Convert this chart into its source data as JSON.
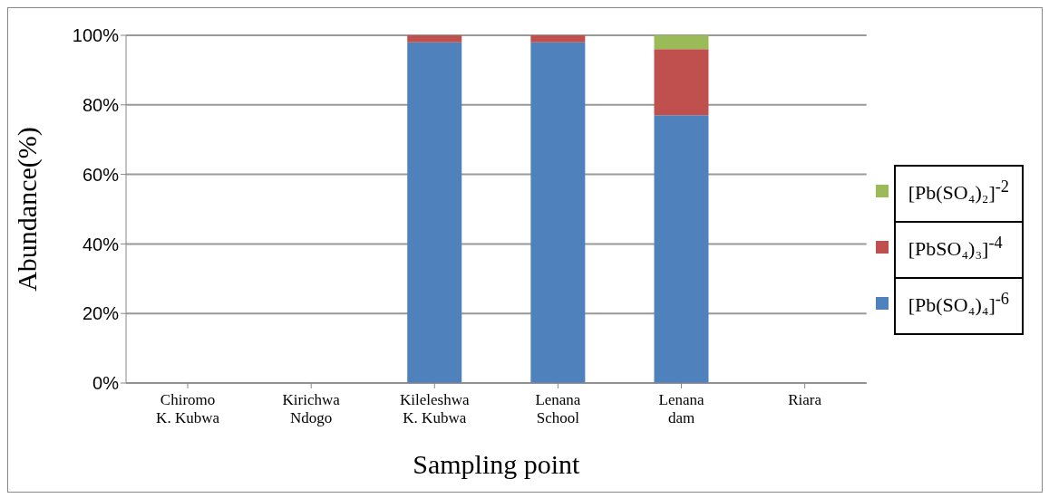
{
  "chart_data": {
    "type": "bar",
    "stacked": true,
    "xlabel": "Sampling point",
    "ylabel": "Abundance(%)",
    "categories": [
      "Chiromo K. Kubwa",
      "Kirichwa Ndogo",
      "Kileleshwa K. Kubwa",
      "Lenana School",
      "Lenana dam",
      "Riara"
    ],
    "series": [
      {
        "name": "[Pb(SO₄)₄]$^{-6}$",
        "color": "#4f81bd",
        "values": [
          0,
          0,
          98,
          98,
          77,
          0
        ]
      },
      {
        "name": "[PbSO₄)₃]$^{-4}$",
        "color": "#c0504d",
        "values": [
          0,
          0,
          2,
          2,
          19,
          0
        ]
      },
      {
        "name": "[Pb(SO₄)₂]$^{-2}$",
        "color": "#9bbb59",
        "values": [
          0,
          0,
          0,
          0,
          4,
          0
        ]
      }
    ],
    "ylim": [
      0,
      100
    ],
    "yticks": [
      {
        "value": 0,
        "label": "0%"
      },
      {
        "value": 20,
        "label": "20%"
      },
      {
        "value": 40,
        "label": "40%"
      },
      {
        "value": 60,
        "label": "60%"
      },
      {
        "value": 80,
        "label": "80%"
      },
      {
        "value": 100,
        "label": "100%"
      }
    ],
    "grid": "y",
    "legend": "right"
  }
}
